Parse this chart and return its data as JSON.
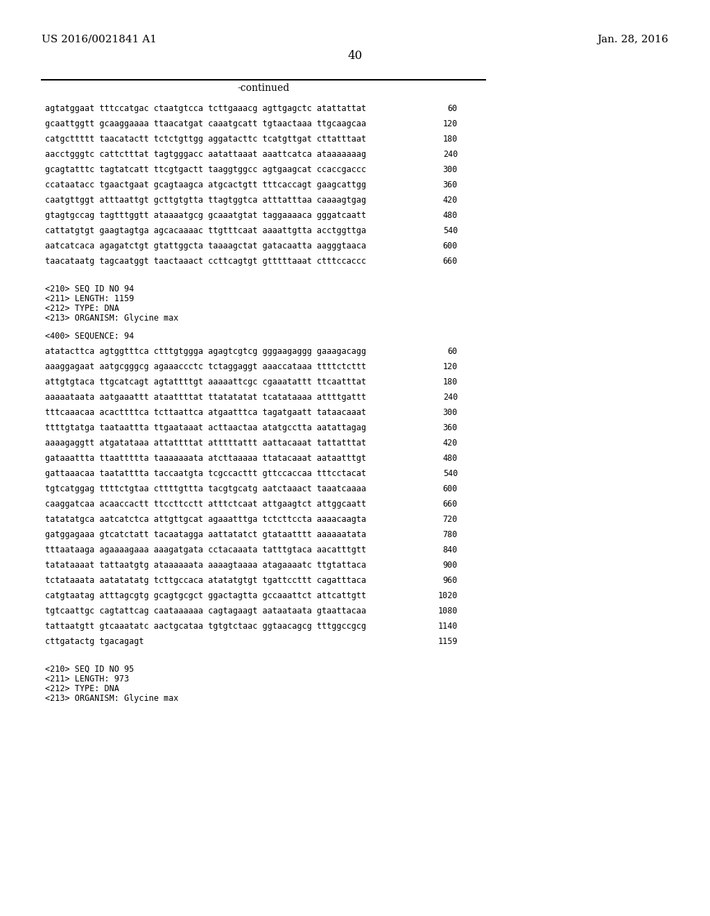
{
  "bg_color": "#ffffff",
  "header_left": "US 2016/0021841 A1",
  "header_right": "Jan. 28, 2016",
  "page_number": "40",
  "continued_label": "-continued",
  "monospace_font": "DejaVu Sans Mono",
  "serif_font": "DejaVu Serif",
  "sequence_lines_top": [
    [
      "agtatggaat tttccatgac ctaatgtcca tcttgaaacg agttgagctc atattattat",
      "60"
    ],
    [
      "gcaattggtt gcaaggaaaa ttaacatgat caaatgcatt tgtaactaaa ttgcaagcaa",
      "120"
    ],
    [
      "catgcttttt taacatactt tctctgttgg aggatacttc tcatgttgat cttatttaat",
      "180"
    ],
    [
      "aacctgggtc cattctttat tagtgggacc aatattaaat aaattcatca ataaaaaaag",
      "240"
    ],
    [
      "gcagtatttc tagtatcatt ttcgtgactt taaggtggcc agtgaagcat ccaccgaccc",
      "300"
    ],
    [
      "ccataatacc tgaactgaat gcagtaagca atgcactgtt tttcaccagt gaagcattgg",
      "360"
    ],
    [
      "caatgttggt atttaattgt gcttgtgtta ttagtggtca atttatttaa caaaagtgag",
      "420"
    ],
    [
      "gtagtgccag tagtttggtt ataaaatgcg gcaaatgtat taggaaaaca gggatcaatt",
      "480"
    ],
    [
      "cattatgtgt gaagtagtga agcacaaaac ttgtttcaat aaaattgtta acctggttga",
      "540"
    ],
    [
      "aatcatcaca agagatctgt gtattggcta taaaagctat gatacaatta aagggtaaca",
      "600"
    ],
    [
      "taacataatg tagcaatggt taactaaact ccttcagtgt gtttttaaat ctttccaccc",
      "660"
    ]
  ],
  "seq94_header": [
    "<210> SEQ ID NO 94",
    "<211> LENGTH: 1159",
    "<212> TYPE: DNA",
    "<213> ORGANISM: Glycine max"
  ],
  "seq94_400": "<400> SEQUENCE: 94",
  "sequence_lines_94": [
    [
      "atatacttca agtggtttca ctttgtggga agagtcgtcg gggaagaggg gaaagacagg",
      "60"
    ],
    [
      "aaaggagaat aatgcgggcg agaaaccctc tctaggaggt aaaccataaa ttttctcttt",
      "120"
    ],
    [
      "attgtgtaca ttgcatcagt agtattttgt aaaaattcgc cgaaatattt ttcaatttat",
      "180"
    ],
    [
      "aaaaataata aatgaaattt ataattttat ttatatatat tcatataaaa attttgattt",
      "240"
    ],
    [
      "tttcaaacaa acacttttca tcttaattca atgaatttca tagatgaatt tataacaaat",
      "300"
    ],
    [
      "ttttgtatga taataattta ttgaataaat acttaactaa atatgcctta aatattagag",
      "360"
    ],
    [
      "aaaagaggtt atgatataaa attattttat atttttattt aattacaaat tattatttat",
      "420"
    ],
    [
      "gataaattta ttaattttta taaaaaaata atcttaaaaa ttatacaaat aataatttgt",
      "480"
    ],
    [
      "gattaaacaa taatatttta taccaatgta tcgccacttt gttccaccaa tttcctacat",
      "540"
    ],
    [
      "tgtcatggag ttttctgtaa cttttgttta tacgtgcatg aatctaaact taaatcaaaa",
      "600"
    ],
    [
      "caaggatcaa acaaccactt ttccttcctt atttctcaat attgaagtct attggcaatt",
      "660"
    ],
    [
      "tatatatgca aatcatctca attgttgcat agaaatttga tctcttccta aaaacaagta",
      "720"
    ],
    [
      "gatggagaaa gtcatctatt tacaatagga aattatatct gtataatttt aaaaaatata",
      "780"
    ],
    [
      "tttaataaga agaaaagaaa aaagatgata cctacaaata tatttgtaca aacatttgtt",
      "840"
    ],
    [
      "tatataaaat tattaatgtg ataaaaaata aaaagtaaaa atagaaaatc ttgtattaca",
      "900"
    ],
    [
      "tctataaata aatatatatg tcttgccaca atatatgtgt tgattccttt cagatttaca",
      "960"
    ],
    [
      "catgtaatag atttagcgtg gcagtgcgct ggactagtta gccaaattct attcattgtt",
      "1020"
    ],
    [
      "tgtcaattgc cagtattcag caataaaaaa cagtagaagt aataataata gtaattacaa",
      "1080"
    ],
    [
      "tattaatgtt gtcaaatatc aactgcataa tgtgtctaac ggtaacagcg tttggccgcg",
      "1140"
    ],
    [
      "cttgatactg tgacagagt",
      "1159"
    ]
  ],
  "seq95_header": [
    "<210> SEQ ID NO 95",
    "<211> LENGTH: 973",
    "<212> TYPE: DNA",
    "<213> ORGANISM: Glycine max"
  ]
}
